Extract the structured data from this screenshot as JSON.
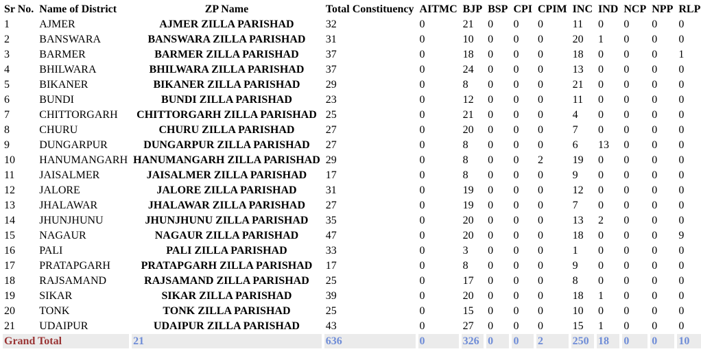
{
  "table": {
    "columns": [
      {
        "key": "sr",
        "label": "Sr No."
      },
      {
        "key": "district",
        "label": "Name of District"
      },
      {
        "key": "zp",
        "label": "ZP Name"
      },
      {
        "key": "total",
        "label": "Total Constituency"
      },
      {
        "key": "aitmc",
        "label": "AITMC"
      },
      {
        "key": "bjp",
        "label": "BJP"
      },
      {
        "key": "bsp",
        "label": "BSP"
      },
      {
        "key": "cpi",
        "label": "CPI"
      },
      {
        "key": "cpim",
        "label": "CPIM"
      },
      {
        "key": "inc",
        "label": "INC"
      },
      {
        "key": "ind",
        "label": "IND"
      },
      {
        "key": "ncp",
        "label": "NCP"
      },
      {
        "key": "npp",
        "label": "NPP"
      },
      {
        "key": "rlp",
        "label": "RLP"
      }
    ],
    "rows": [
      [
        "1",
        "AJMER",
        "AJMER ZILLA PARISHAD",
        "32",
        "0",
        "21",
        "0",
        "0",
        "0",
        "11",
        "0",
        "0",
        "0",
        "0"
      ],
      [
        "2",
        "BANSWARA",
        "BANSWARA ZILLA PARISHAD",
        "31",
        "0",
        "10",
        "0",
        "0",
        "0",
        "20",
        "1",
        "0",
        "0",
        "0"
      ],
      [
        "3",
        "BARMER",
        "BARMER ZILLA PARISHAD",
        "37",
        "0",
        "18",
        "0",
        "0",
        "0",
        "18",
        "0",
        "0",
        "0",
        "1"
      ],
      [
        "4",
        "BHILWARA",
        "BHILWARA ZILLA PARISHAD",
        "37",
        "0",
        "24",
        "0",
        "0",
        "0",
        "13",
        "0",
        "0",
        "0",
        "0"
      ],
      [
        "5",
        "BIKANER",
        "BIKANER ZILLA PARISHAD",
        "29",
        "0",
        "8",
        "0",
        "0",
        "0",
        "21",
        "0",
        "0",
        "0",
        "0"
      ],
      [
        "6",
        "BUNDI",
        "BUNDI ZILLA PARISHAD",
        "23",
        "0",
        "12",
        "0",
        "0",
        "0",
        "11",
        "0",
        "0",
        "0",
        "0"
      ],
      [
        "7",
        "CHITTORGARH",
        "CHITTORGARH ZILLA PARISHAD",
        "25",
        "0",
        "21",
        "0",
        "0",
        "0",
        "4",
        "0",
        "0",
        "0",
        "0"
      ],
      [
        "8",
        "CHURU",
        "CHURU ZILLA PARISHAD",
        "27",
        "0",
        "20",
        "0",
        "0",
        "0",
        "7",
        "0",
        "0",
        "0",
        "0"
      ],
      [
        "9",
        "DUNGARPUR",
        "DUNGARPUR ZILLA PARISHAD",
        "27",
        "0",
        "8",
        "0",
        "0",
        "0",
        "6",
        "13",
        "0",
        "0",
        "0"
      ],
      [
        "10",
        "HANUMANGARH",
        "HANUMANGARH ZILLA PARISHAD",
        "29",
        "0",
        "8",
        "0",
        "0",
        "2",
        "19",
        "0",
        "0",
        "0",
        "0"
      ],
      [
        "11",
        "JAISALMER",
        "JAISALMER ZILLA PARISHAD",
        "17",
        "0",
        "8",
        "0",
        "0",
        "0",
        "9",
        "0",
        "0",
        "0",
        "0"
      ],
      [
        "12",
        "JALORE",
        "JALORE ZILLA PARISHAD",
        "31",
        "0",
        "19",
        "0",
        "0",
        "0",
        "12",
        "0",
        "0",
        "0",
        "0"
      ],
      [
        "13",
        "JHALAWAR",
        "JHALAWAR ZILLA PARISHAD",
        "27",
        "0",
        "19",
        "0",
        "0",
        "0",
        "7",
        "0",
        "0",
        "0",
        "0"
      ],
      [
        "14",
        "JHUNJHUNU",
        "JHUNJHUNU ZILLA PARISHAD",
        "35",
        "0",
        "20",
        "0",
        "0",
        "0",
        "13",
        "2",
        "0",
        "0",
        "0"
      ],
      [
        "15",
        "NAGAUR",
        "NAGAUR ZILLA PARISHAD",
        "47",
        "0",
        "20",
        "0",
        "0",
        "0",
        "18",
        "0",
        "0",
        "0",
        "9"
      ],
      [
        "16",
        "PALI",
        "PALI ZILLA PARISHAD",
        "33",
        "0",
        "3",
        "0",
        "0",
        "0",
        "1",
        "0",
        "0",
        "0",
        "0"
      ],
      [
        "17",
        "PRATAPGARH",
        "PRATAPGARH ZILLA PARISHAD",
        "17",
        "0",
        "8",
        "0",
        "0",
        "0",
        "9",
        "0",
        "0",
        "0",
        "0"
      ],
      [
        "18",
        "RAJSAMAND",
        "RAJSAMAND ZILLA PARISHAD",
        "25",
        "0",
        "17",
        "0",
        "0",
        "0",
        "8",
        "0",
        "0",
        "0",
        "0"
      ],
      [
        "19",
        "SIKAR",
        "SIKAR ZILLA PARISHAD",
        "39",
        "0",
        "20",
        "0",
        "0",
        "0",
        "18",
        "1",
        "0",
        "0",
        "0"
      ],
      [
        "20",
        "TONK",
        "TONK ZILLA PARISHAD",
        "25",
        "0",
        "15",
        "0",
        "0",
        "0",
        "10",
        "0",
        "0",
        "0",
        "0"
      ],
      [
        "21",
        "UDAIPUR",
        "UDAIPUR ZILLA PARISHAD",
        "43",
        "0",
        "27",
        "0",
        "0",
        "0",
        "15",
        "1",
        "0",
        "0",
        "0"
      ]
    ],
    "grand_total": {
      "label": "Grand Total",
      "zp_name_count": "21",
      "values": [
        "636",
        "0",
        "326",
        "0",
        "0",
        "2",
        "250",
        "18",
        "0",
        "0",
        "10"
      ]
    }
  },
  "colors": {
    "grand_total_bg": "#ebebeb",
    "grand_total_label": "#993333",
    "grand_total_value": "#6e8cd7",
    "body_text": "#000000",
    "page_bg": "#ffffff"
  }
}
